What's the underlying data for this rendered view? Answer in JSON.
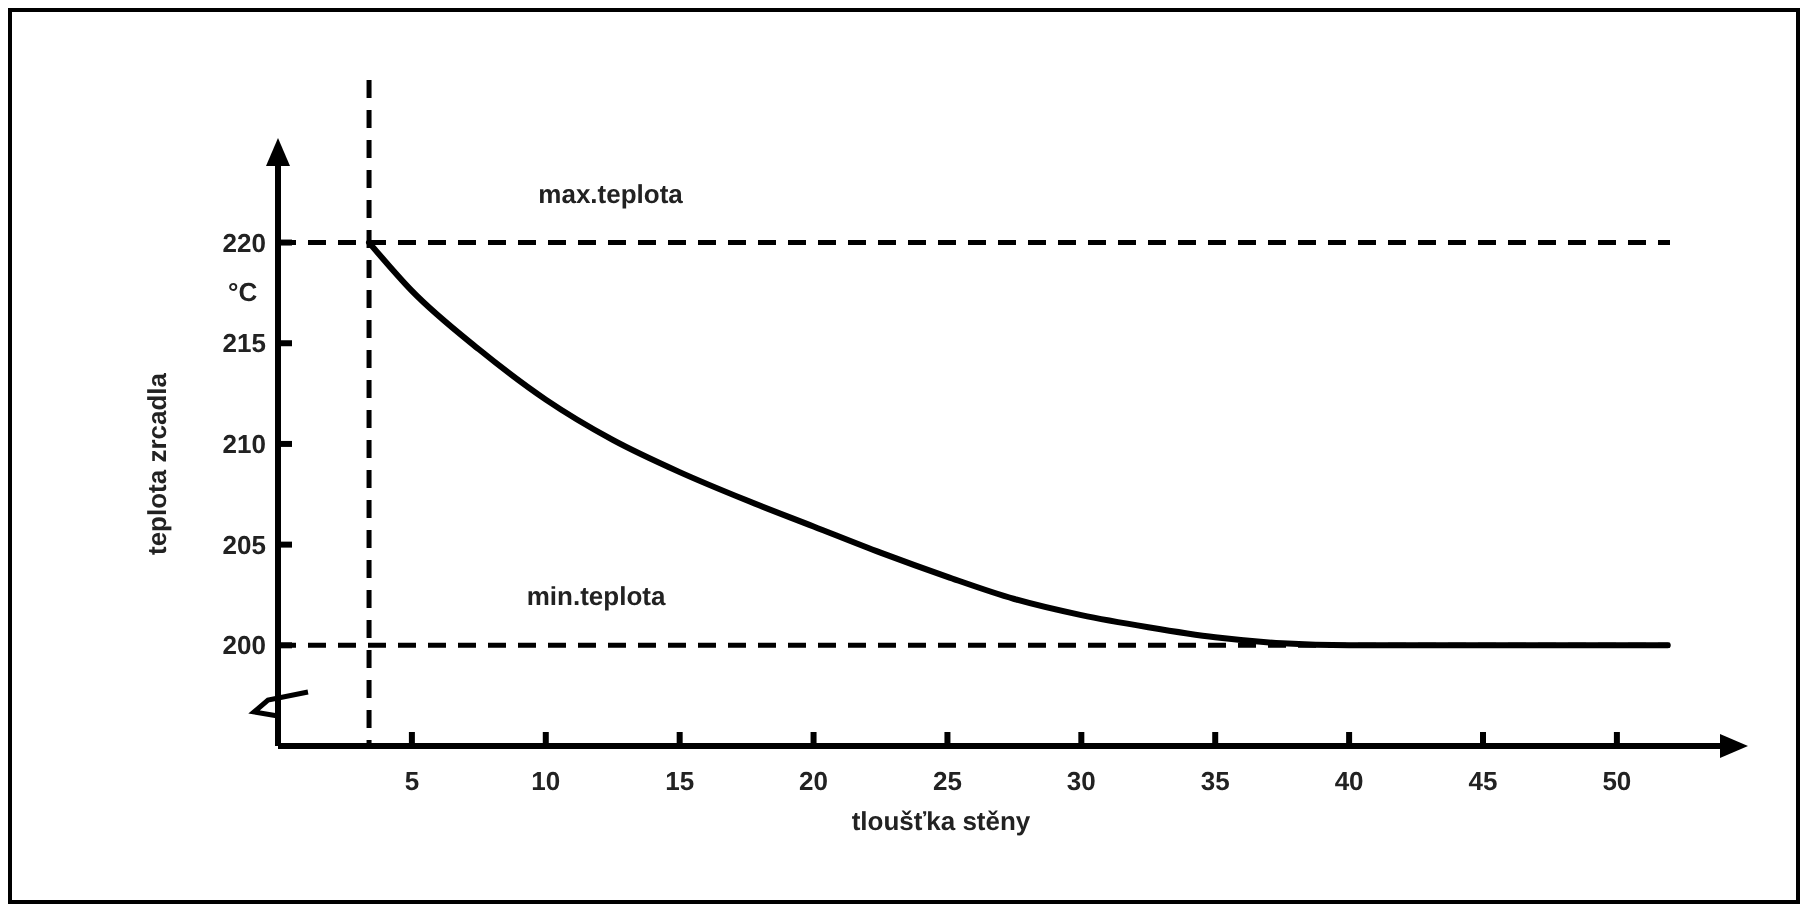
{
  "chart_data": {
    "type": "line",
    "xlabel": "tloušťka stěny",
    "ylabel": "teplota zrcadla",
    "annotations": [
      "°C"
    ],
    "xlim": [
      0,
      54
    ],
    "ylim": [
      195,
      224
    ],
    "xticks": [
      5,
      10,
      15,
      20,
      25,
      30,
      35,
      40,
      45,
      50
    ],
    "yticks": [
      200,
      205,
      210,
      215,
      220
    ],
    "series": [
      {
        "color": "#000000",
        "x": [
          3.4,
          5,
          7.5,
          10,
          12.5,
          15,
          17.5,
          20,
          22.5,
          25,
          27.5,
          30,
          32.5,
          35,
          37.5,
          40,
          45,
          51.9
        ],
        "values": [
          220,
          217.6,
          214.7,
          212.2,
          210.2,
          208.6,
          207.2,
          205.9,
          204.6,
          203.4,
          202.3,
          201.5,
          200.9,
          200.4,
          200.1,
          200,
          200,
          200
        ]
      }
    ],
    "ref_lines": [
      {
        "axis": "y",
        "value": 220,
        "label": "max.teplota",
        "line_style": "dashed",
        "color": "#000000"
      },
      {
        "axis": "y",
        "value": 200,
        "label": "min.teplota",
        "line_style": "dashed",
        "color": "#000000"
      },
      {
        "axis": "x",
        "value": 3.4,
        "line_style": "dashed",
        "color": "#000000"
      }
    ],
    "marker": "none",
    "line_style": "solid"
  }
}
